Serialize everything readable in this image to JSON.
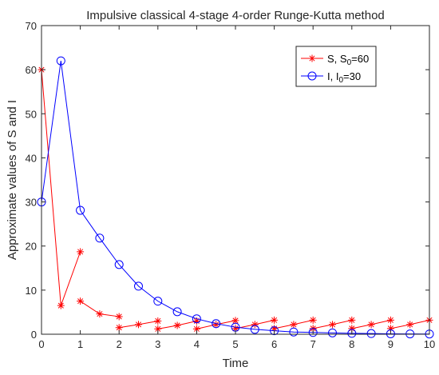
{
  "chart_data": {
    "type": "line",
    "title": "Impulsive classical 4-stage 4-order Runge-Kutta method",
    "xlabel": "Time",
    "ylabel": "Approximate values of S and I",
    "xlim": [
      0,
      10
    ],
    "ylim": [
      0,
      70
    ],
    "xticks": [
      "0",
      "1",
      "2",
      "3",
      "4",
      "5",
      "6",
      "7",
      "8",
      "9",
      "10"
    ],
    "yticks": [
      "0",
      "10",
      "20",
      "30",
      "40",
      "50",
      "60",
      "70"
    ],
    "grid": false,
    "legend_position": "top-right",
    "series": [
      {
        "name": "S, S0=60",
        "legend_main": "S, S",
        "legend_sub": "0",
        "legend_tail": "=60",
        "color": "#ff0000",
        "marker": "asterisk",
        "segments": [
          [
            [
              0,
              60
            ],
            [
              0.5,
              6.5
            ],
            [
              1,
              18.7
            ]
          ],
          [
            [
              1,
              7.5
            ],
            [
              1.5,
              4.6
            ],
            [
              2,
              4.0
            ]
          ],
          [
            [
              2,
              1.5
            ],
            [
              2.5,
              2.2
            ],
            [
              3,
              3.0
            ]
          ],
          [
            [
              3,
              1.2
            ],
            [
              3.5,
              2.0
            ],
            [
              4,
              3.0
            ]
          ],
          [
            [
              4,
              1.2
            ],
            [
              4.5,
              2.2
            ],
            [
              5,
              3.1
            ]
          ],
          [
            [
              5,
              1.3
            ],
            [
              5.5,
              2.2
            ],
            [
              6,
              3.2
            ]
          ],
          [
            [
              6,
              1.3
            ],
            [
              6.5,
              2.2
            ],
            [
              7,
              3.2
            ]
          ],
          [
            [
              7,
              1.3
            ],
            [
              7.5,
              2.2
            ],
            [
              8,
              3.2
            ]
          ],
          [
            [
              8,
              1.3
            ],
            [
              8.5,
              2.2
            ],
            [
              9,
              3.2
            ]
          ],
          [
            [
              9,
              1.3
            ],
            [
              9.5,
              2.2
            ],
            [
              10,
              3.2
            ]
          ]
        ]
      },
      {
        "name": "I, I0=30",
        "legend_main": "I, I",
        "legend_sub": "0",
        "legend_tail": "=30",
        "color": "#0000ff",
        "marker": "circle",
        "segments": [
          [
            [
              0,
              30
            ],
            [
              0.5,
              62
            ],
            [
              1,
              28.1
            ],
            [
              1.5,
              21.8
            ],
            [
              2,
              15.8
            ],
            [
              2.5,
              10.9
            ],
            [
              3,
              7.5
            ],
            [
              3.5,
              5.1
            ],
            [
              4,
              3.5
            ],
            [
              4.5,
              2.4
            ],
            [
              5,
              1.6
            ],
            [
              5.5,
              1.1
            ],
            [
              6,
              0.8
            ],
            [
              6.5,
              0.5
            ],
            [
              7,
              0.4
            ],
            [
              7.5,
              0.3
            ],
            [
              8,
              0.2
            ],
            [
              8.5,
              0.15
            ],
            [
              9,
              0.1
            ],
            [
              9.5,
              0.07
            ],
            [
              10,
              0.05
            ]
          ]
        ]
      }
    ]
  }
}
